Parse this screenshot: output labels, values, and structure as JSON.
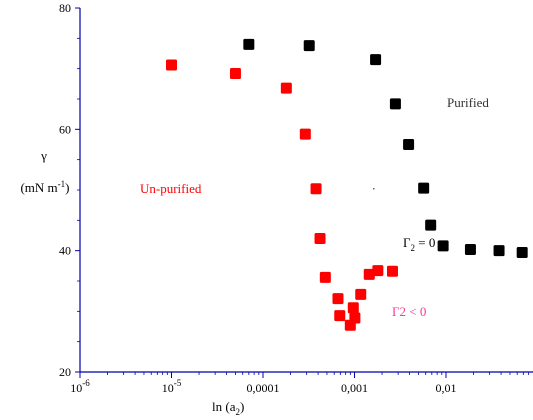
{
  "chart_data": {
    "type": "scatter",
    "x_scale": "log",
    "xlim": [
      1e-06,
      0.1
    ],
    "ylim": [
      20,
      80
    ],
    "grid": false,
    "xlabel": "ln (a",
    "xlabel_sub": "2",
    "xlabel_end": ")",
    "ylabel": "γ",
    "ylabel_unit": "(mN m",
    "ylabel_unit_sup": "-1",
    "ylabel_unit_end": ")",
    "x_ticks": [
      {
        "value": 1e-06,
        "base": "10",
        "exp": "-6"
      },
      {
        "value": 1e-05,
        "base": "10",
        "exp": "-5"
      },
      {
        "value": 0.0001,
        "label": "0,0001"
      },
      {
        "value": 0.001,
        "label": "0,001"
      },
      {
        "value": 0.01,
        "label": "0,01"
      }
    ],
    "y_ticks": [
      20,
      40,
      60,
      80
    ],
    "series": [
      {
        "name": "Purified",
        "color": "#000000",
        "points": [
          [
            7e-05,
            74.0
          ],
          [
            0.00032,
            73.8
          ],
          [
            0.0017,
            71.5
          ],
          [
            0.0028,
            64.2
          ],
          [
            0.0039,
            57.5
          ],
          [
            0.0057,
            50.3
          ],
          [
            0.0068,
            44.2
          ],
          [
            0.0093,
            40.8
          ],
          [
            0.0185,
            40.2
          ],
          [
            0.038,
            40.0
          ],
          [
            0.068,
            39.7
          ]
        ]
      },
      {
        "name": "Un-purified",
        "color": "#ff0000",
        "points": [
          [
            1e-05,
            70.6
          ],
          [
            5e-05,
            69.2
          ],
          [
            0.00018,
            66.8
          ],
          [
            0.00029,
            59.2
          ],
          [
            0.00038,
            50.2
          ],
          [
            0.00042,
            42.0
          ],
          [
            0.00048,
            35.6
          ],
          [
            0.00066,
            32.1
          ],
          [
            0.00069,
            29.3
          ],
          [
            0.0009,
            27.7
          ],
          [
            0.00097,
            30.6
          ],
          [
            0.00101,
            28.9
          ],
          [
            0.00117,
            32.8
          ],
          [
            0.00145,
            36.1
          ],
          [
            0.0018,
            36.7
          ],
          [
            0.0026,
            36.6
          ]
        ]
      }
    ],
    "annotations": [
      {
        "text": "Purified",
        "color": "#333333"
      },
      {
        "text": "Un-purified",
        "color": "#ff0000"
      },
      {
        "text": "Γ",
        "sub": "2",
        "tail": " = 0",
        "color": "#000000"
      },
      {
        "text": "Γ2 < 0",
        "color": "#ff3399"
      }
    ]
  }
}
